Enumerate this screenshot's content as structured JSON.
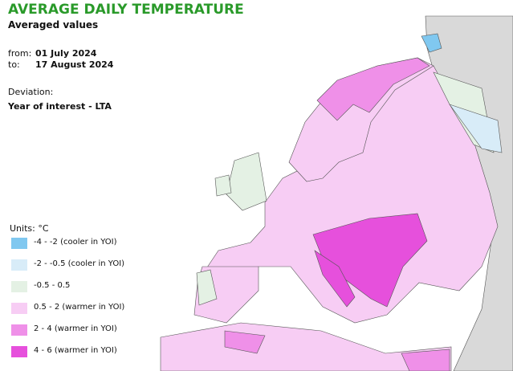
{
  "header": {
    "title": "AVERAGE DAILY TEMPERATURE",
    "subtitle": "Averaged values"
  },
  "period": {
    "from_label": "from:",
    "from": "01 July 2024",
    "to_label": "to:",
    "to": "17 August 2024"
  },
  "deviation": {
    "label": "Deviation:",
    "value": "Year of interest - LTA"
  },
  "legend": {
    "title": "Units: °C",
    "items": [
      {
        "label": "-4 - -2 (cooler in YOI)",
        "color": "#80c8f0"
      },
      {
        "label": "-2 - -0.5 (cooler in YOI)",
        "color": "#d8ecf8"
      },
      {
        "label": "-0.5 - 0.5",
        "color": "#e4f1e4"
      },
      {
        "label": "0.5 - 2 (warmer in YOI)",
        "color": "#f7cdf4"
      },
      {
        "label": "2 - 4 (warmer in YOI)",
        "color": "#ef90e8"
      },
      {
        "label": "4 - 6 (warmer in YOI)",
        "color": "#e650dc"
      }
    ]
  }
}
